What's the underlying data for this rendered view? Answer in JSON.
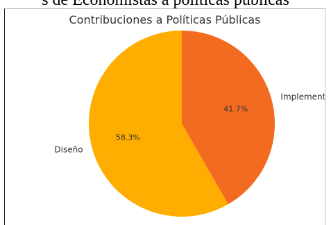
{
  "document": {
    "caption": "s de Economistas a políticas públicas"
  },
  "chart_data": {
    "type": "pie",
    "title": "Contribuciones a Políticas Públicas",
    "slices": [
      {
        "label": "Implement",
        "percent_label": "41.7%",
        "value": 41.7,
        "color": "#f26b21"
      },
      {
        "label": "Diseño",
        "percent_label": "58.3%",
        "value": 58.3,
        "color": "#ffad00"
      }
    ],
    "start_angle": "top",
    "direction": "clockwise"
  }
}
